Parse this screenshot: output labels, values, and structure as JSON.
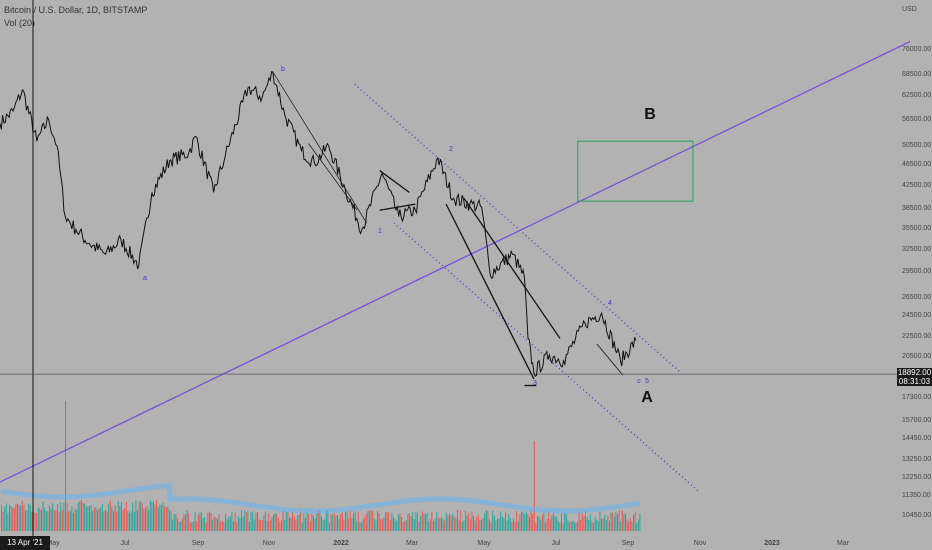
{
  "legend": {
    "symbol": "Bitcoin / U.S. Dollar, 1D, BITSTAMP",
    "volume": "Vol (20)"
  },
  "price_axis": {
    "currency": "USD",
    "ticks": [
      "76000.00",
      "68500.00",
      "62500.00",
      "56500.00",
      "50500.00",
      "46500.00",
      "42500.00",
      "38500.00",
      "35500.00",
      "32500.00",
      "29500.00",
      "26500.00",
      "24500.00",
      "22500.00",
      "20500.00",
      "17300.00",
      "15700.00",
      "14450.00",
      "13250.00",
      "12250.00",
      "11350.00",
      "10450.00"
    ]
  },
  "time_axis": {
    "ticks": [
      "May",
      "Jul",
      "Sep",
      "Nov",
      "2022",
      "Mar",
      "May",
      "Jul",
      "Sep",
      "Nov",
      "2023",
      "Mar"
    ]
  },
  "crosshair": {
    "price": "18892.00",
    "countdown": "08:31:03",
    "date": "13 Apr '21"
  },
  "annotations": {
    "B": "B",
    "A": "A",
    "w_a": "a",
    "w_b": "b",
    "w_1": "1",
    "w_2": "2",
    "w_3": "3",
    "w_4": "4",
    "w_5": "5",
    "w_c": "c"
  },
  "colors": {
    "background": "#b2b2b2",
    "price_line": "#111111",
    "trendline": "#7b4fd6",
    "channel": "#4a44b8",
    "target_box": "#2e9e5b",
    "volume_up": "#26a69a",
    "volume_down": "#ef5350",
    "volume_ma": "#64b5f6",
    "wave_label": "#3d3dbf"
  },
  "chart_data": {
    "type": "line",
    "title": "Bitcoin / U.S. Dollar, 1D, BITSTAMP",
    "xlabel": "",
    "ylabel": "USD",
    "y_scale": "log",
    "ylim": [
      10000,
      85000
    ],
    "xlim": [
      "2021-03-25",
      "2023-04-20"
    ],
    "grid": false,
    "series": [
      {
        "x": [
          "2021-03-25",
          "2021-04-05",
          "2021-04-13",
          "2021-04-25",
          "2021-05-05",
          "2021-05-12",
          "2021-05-19",
          "2021-05-28",
          "2021-06-08",
          "2021-06-22",
          "2021-07-05",
          "2021-07-20",
          "2021-07-31",
          "2021-08-15",
          "2021-08-31",
          "2021-09-06",
          "2021-09-21",
          "2021-10-01",
          "2021-10-20",
          "2021-11-01",
          "2021-11-10",
          "2021-11-20",
          "2021-12-04",
          "2021-12-15",
          "2021-12-27",
          "2022-01-10",
          "2022-01-24",
          "2022-02-10",
          "2022-02-24",
          "2022-03-10",
          "2022-03-29",
          "2022-04-11",
          "2022-04-25",
          "2022-05-05",
          "2022-05-12",
          "2022-05-31",
          "2022-06-10",
          "2022-06-13",
          "2022-06-18",
          "2022-07-01",
          "2022-07-13",
          "2022-07-31",
          "2022-08-14",
          "2022-08-30",
          "2022-09-12"
        ],
        "values": [
          55000,
          58000,
          63500,
          51000,
          56000,
          50000,
          37000,
          35000,
          33000,
          31500,
          33500,
          30000,
          41000,
          47000,
          48500,
          52000,
          41000,
          48000,
          64000,
          61500,
          68500,
          57000,
          49000,
          46500,
          50000,
          41500,
          35000,
          44500,
          37000,
          38000,
          47500,
          40000,
          39000,
          38500,
          29000,
          31500,
          28500,
          22000,
          19000,
          20500,
          20000,
          23500,
          24500,
          20000,
          21800
        ]
      }
    ],
    "volume": {
      "spikes": [
        {
          "x": "2021-04-25",
          "value": "high"
        },
        {
          "x": "2021-05-19",
          "value": "highest"
        },
        {
          "x": "2022-06-18",
          "value": "high"
        },
        {
          "x": "2022-07-01",
          "value": "medium"
        }
      ]
    },
    "drawings": {
      "rising_trendline": {
        "from": {
          "x": "2021-02-20",
          "y": 11000
        },
        "to": {
          "x": "2023-05-01",
          "y": 78000
        }
      },
      "channel_upper": {
        "from": {
          "x": "2022-01-18",
          "y": 65000
        },
        "to": {
          "x": "2022-10-20",
          "y": 19000
        }
      },
      "channel_lower": {
        "from": {
          "x": "2022-02-20",
          "y": 36000
        },
        "to": {
          "x": "2022-11-05",
          "y": 11400
        }
      },
      "target_zone": {
        "x0": "2022-07-25",
        "x1": "2022-10-30",
        "y0": 39500,
        "y1": 51000
      }
    }
  }
}
